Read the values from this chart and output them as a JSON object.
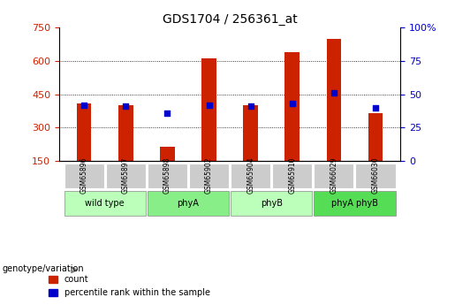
{
  "title": "GDS1704 / 256361_at",
  "samples": [
    "GSM65896",
    "GSM65897",
    "GSM65898",
    "GSM65902",
    "GSM65904",
    "GSM65910",
    "GSM66029",
    "GSM66030"
  ],
  "count_values": [
    410,
    400,
    215,
    610,
    400,
    640,
    700,
    365
  ],
  "percentile_values": [
    42,
    41,
    36,
    42,
    41,
    43,
    51,
    40
  ],
  "ylim_left": [
    150,
    750
  ],
  "ylim_right": [
    0,
    100
  ],
  "yticks_left": [
    150,
    300,
    450,
    600,
    750
  ],
  "yticks_right": [
    0,
    25,
    50,
    75,
    100
  ],
  "bar_color": "#cc2200",
  "dot_color": "#0000cc",
  "groups": [
    {
      "label": "wild type",
      "start": 0,
      "end": 2,
      "color": "#bbffbb"
    },
    {
      "label": "phyA",
      "start": 2,
      "end": 4,
      "color": "#88ee88"
    },
    {
      "label": "phyB",
      "start": 4,
      "end": 6,
      "color": "#bbffbb"
    },
    {
      "label": "phyA phyB",
      "start": 6,
      "end": 8,
      "color": "#55dd55"
    }
  ],
  "xlabel_group": "genotype/variation",
  "legend_count_label": "count",
  "legend_percentile_label": "percentile rank within the sample",
  "tick_label_color_left": "#cc2200",
  "tick_label_color_right": "#0000cc",
  "grid_color": "#000000",
  "background_color": "#ffffff",
  "plot_bg_color": "#ffffff",
  "bar_width": 0.35,
  "sample_box_color": "#cccccc"
}
